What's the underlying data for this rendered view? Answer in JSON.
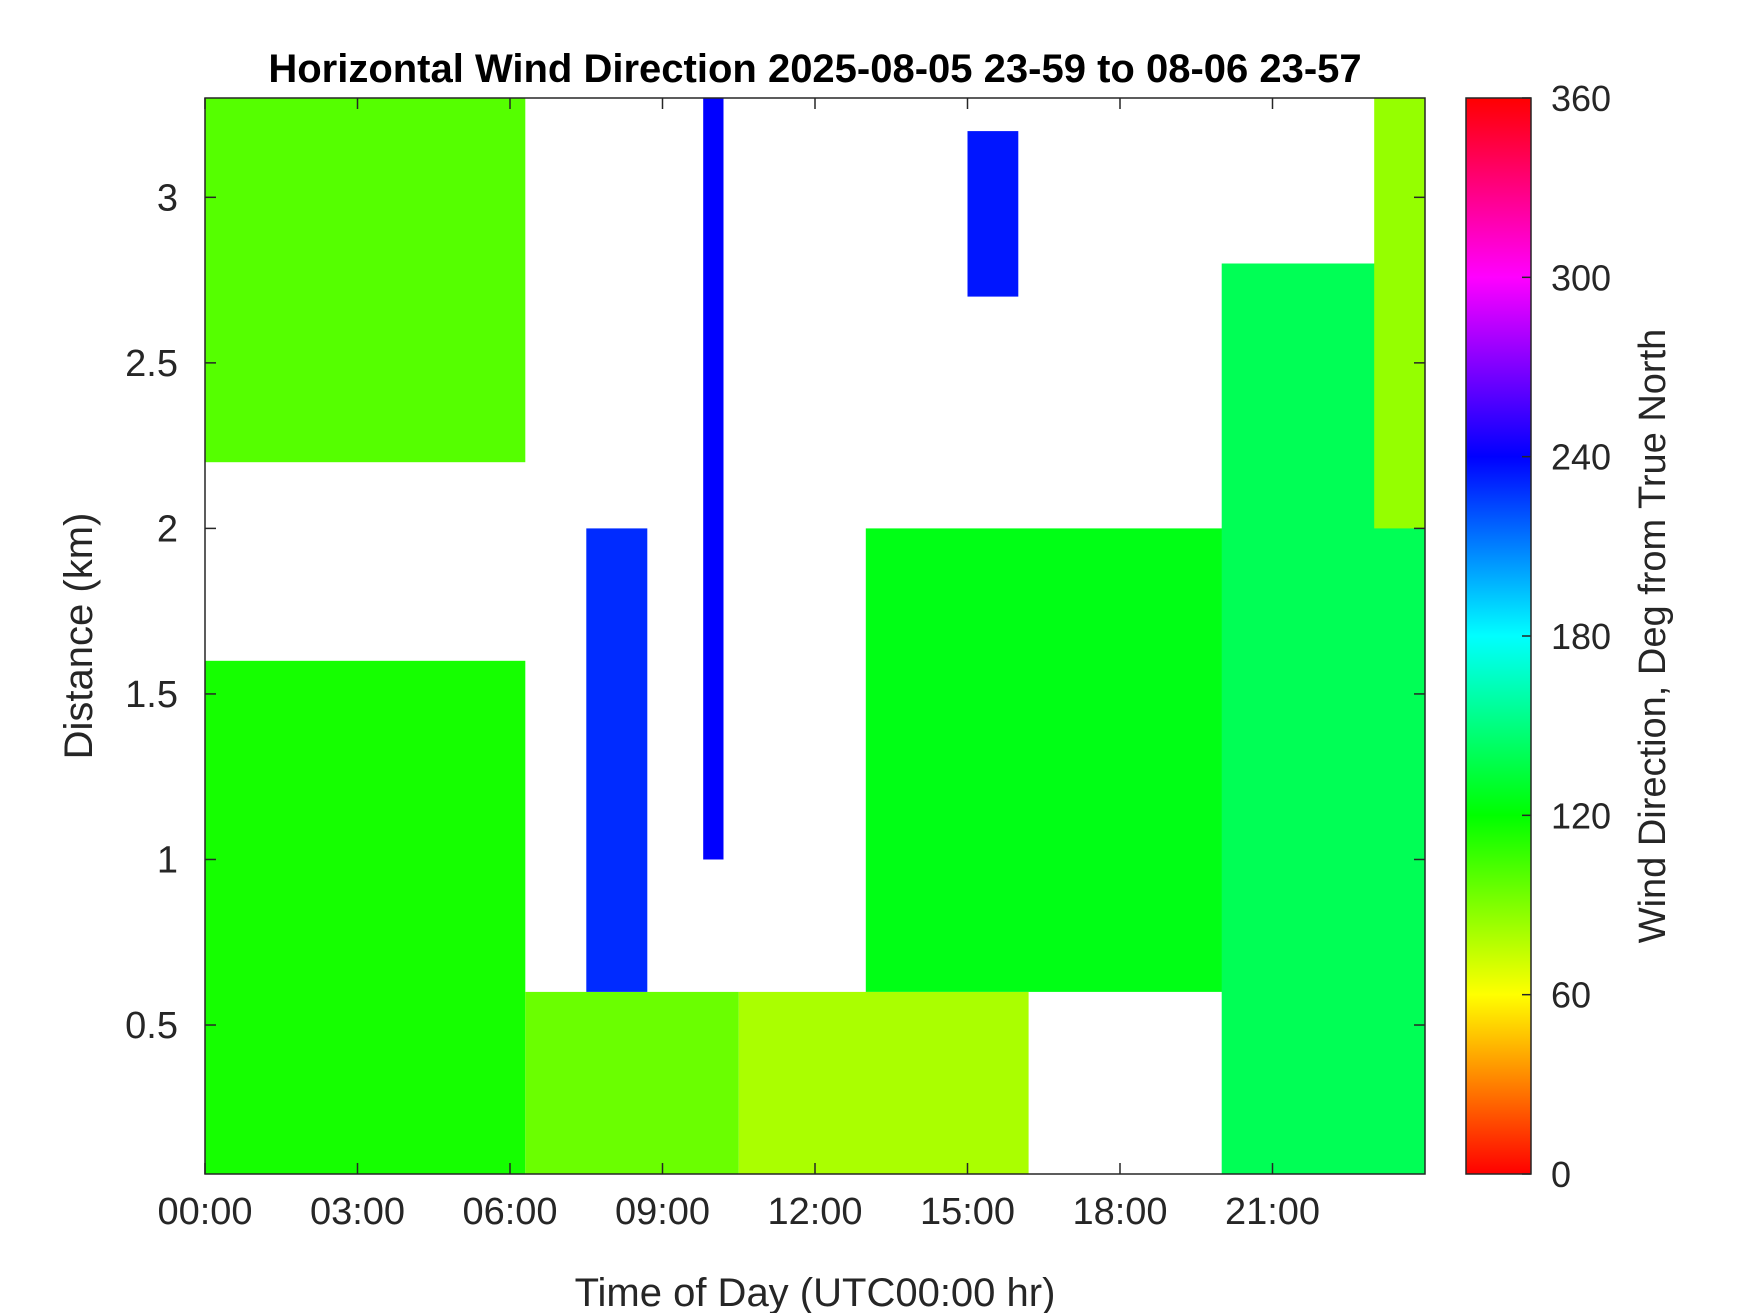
{
  "chart_data": {
    "type": "heatmap",
    "title": "Horizontal Wind Direction 2025-08-05 23-59 to 08-06 23-57",
    "xlabel": "Time of Day (UTC00:00 hr)",
    "ylabel": "Distance (km)",
    "xlim": [
      0,
      24
    ],
    "ylim": [
      0.05,
      3.3
    ],
    "x_ticks": [
      0,
      3,
      6,
      9,
      12,
      15,
      18,
      21
    ],
    "x_tick_labels": [
      "00:00",
      "03:00",
      "06:00",
      "09:00",
      "12:00",
      "15:00",
      "18:00",
      "21:00"
    ],
    "y_ticks": [
      0.5,
      1,
      1.5,
      2,
      2.5,
      3
    ],
    "y_tick_labels": [
      "0.5",
      "1",
      "1.5",
      "2",
      "2.5",
      "3"
    ],
    "colorbar": {
      "label": "Wind Direction, Deg from True North",
      "range": [
        0,
        360
      ],
      "ticks": [
        0,
        60,
        120,
        180,
        240,
        300,
        360
      ],
      "tick_labels": [
        "0",
        "60",
        "120",
        "180",
        "240",
        "300",
        "360"
      ],
      "colormap": [
        {
          "value": 0,
          "color": "#ff0000"
        },
        {
          "value": 60,
          "color": "#ffff00"
        },
        {
          "value": 120,
          "color": "#00ff00"
        },
        {
          "value": 180,
          "color": "#00ffff"
        },
        {
          "value": 240,
          "color": "#0000ff"
        },
        {
          "value": 300,
          "color": "#ff00ff"
        },
        {
          "value": 360,
          "color": "#ff0000"
        }
      ]
    },
    "missing_data_color": "#ffffff",
    "data_regions": [
      {
        "time_range": [
          0,
          6.3
        ],
        "distance_range": [
          2.2,
          3.3
        ],
        "direction_deg": 100
      },
      {
        "time_range": [
          0,
          6.3
        ],
        "distance_range": [
          0.05,
          1.6
        ],
        "direction_deg": 115
      },
      {
        "time_range": [
          6.3,
          10.5
        ],
        "distance_range": [
          0.05,
          0.6
        ],
        "direction_deg": 95
      },
      {
        "time_range": [
          10.5,
          16.2
        ],
        "distance_range": [
          0.05,
          0.6
        ],
        "direction_deg": 80
      },
      {
        "time_range": [
          13,
          20.5
        ],
        "distance_range": [
          0.6,
          2.0
        ],
        "direction_deg": 125
      },
      {
        "time_range": [
          20,
          24
        ],
        "distance_range": [
          0.05,
          2.8
        ],
        "direction_deg": 140
      },
      {
        "time_range": [
          23,
          24
        ],
        "distance_range": [
          2.0,
          3.3
        ],
        "direction_deg": 85
      },
      {
        "time_range": [
          9.8,
          10.2
        ],
        "distance_range": [
          1.0,
          3.3
        ],
        "direction_deg": 240
      },
      {
        "time_range": [
          7.5,
          8.7
        ],
        "distance_range": [
          0.6,
          2.0
        ],
        "direction_deg": 230
      },
      {
        "time_range": [
          15.0,
          16.0
        ],
        "distance_range": [
          2.7,
          3.2
        ],
        "direction_deg": 235
      }
    ],
    "grid": false
  }
}
